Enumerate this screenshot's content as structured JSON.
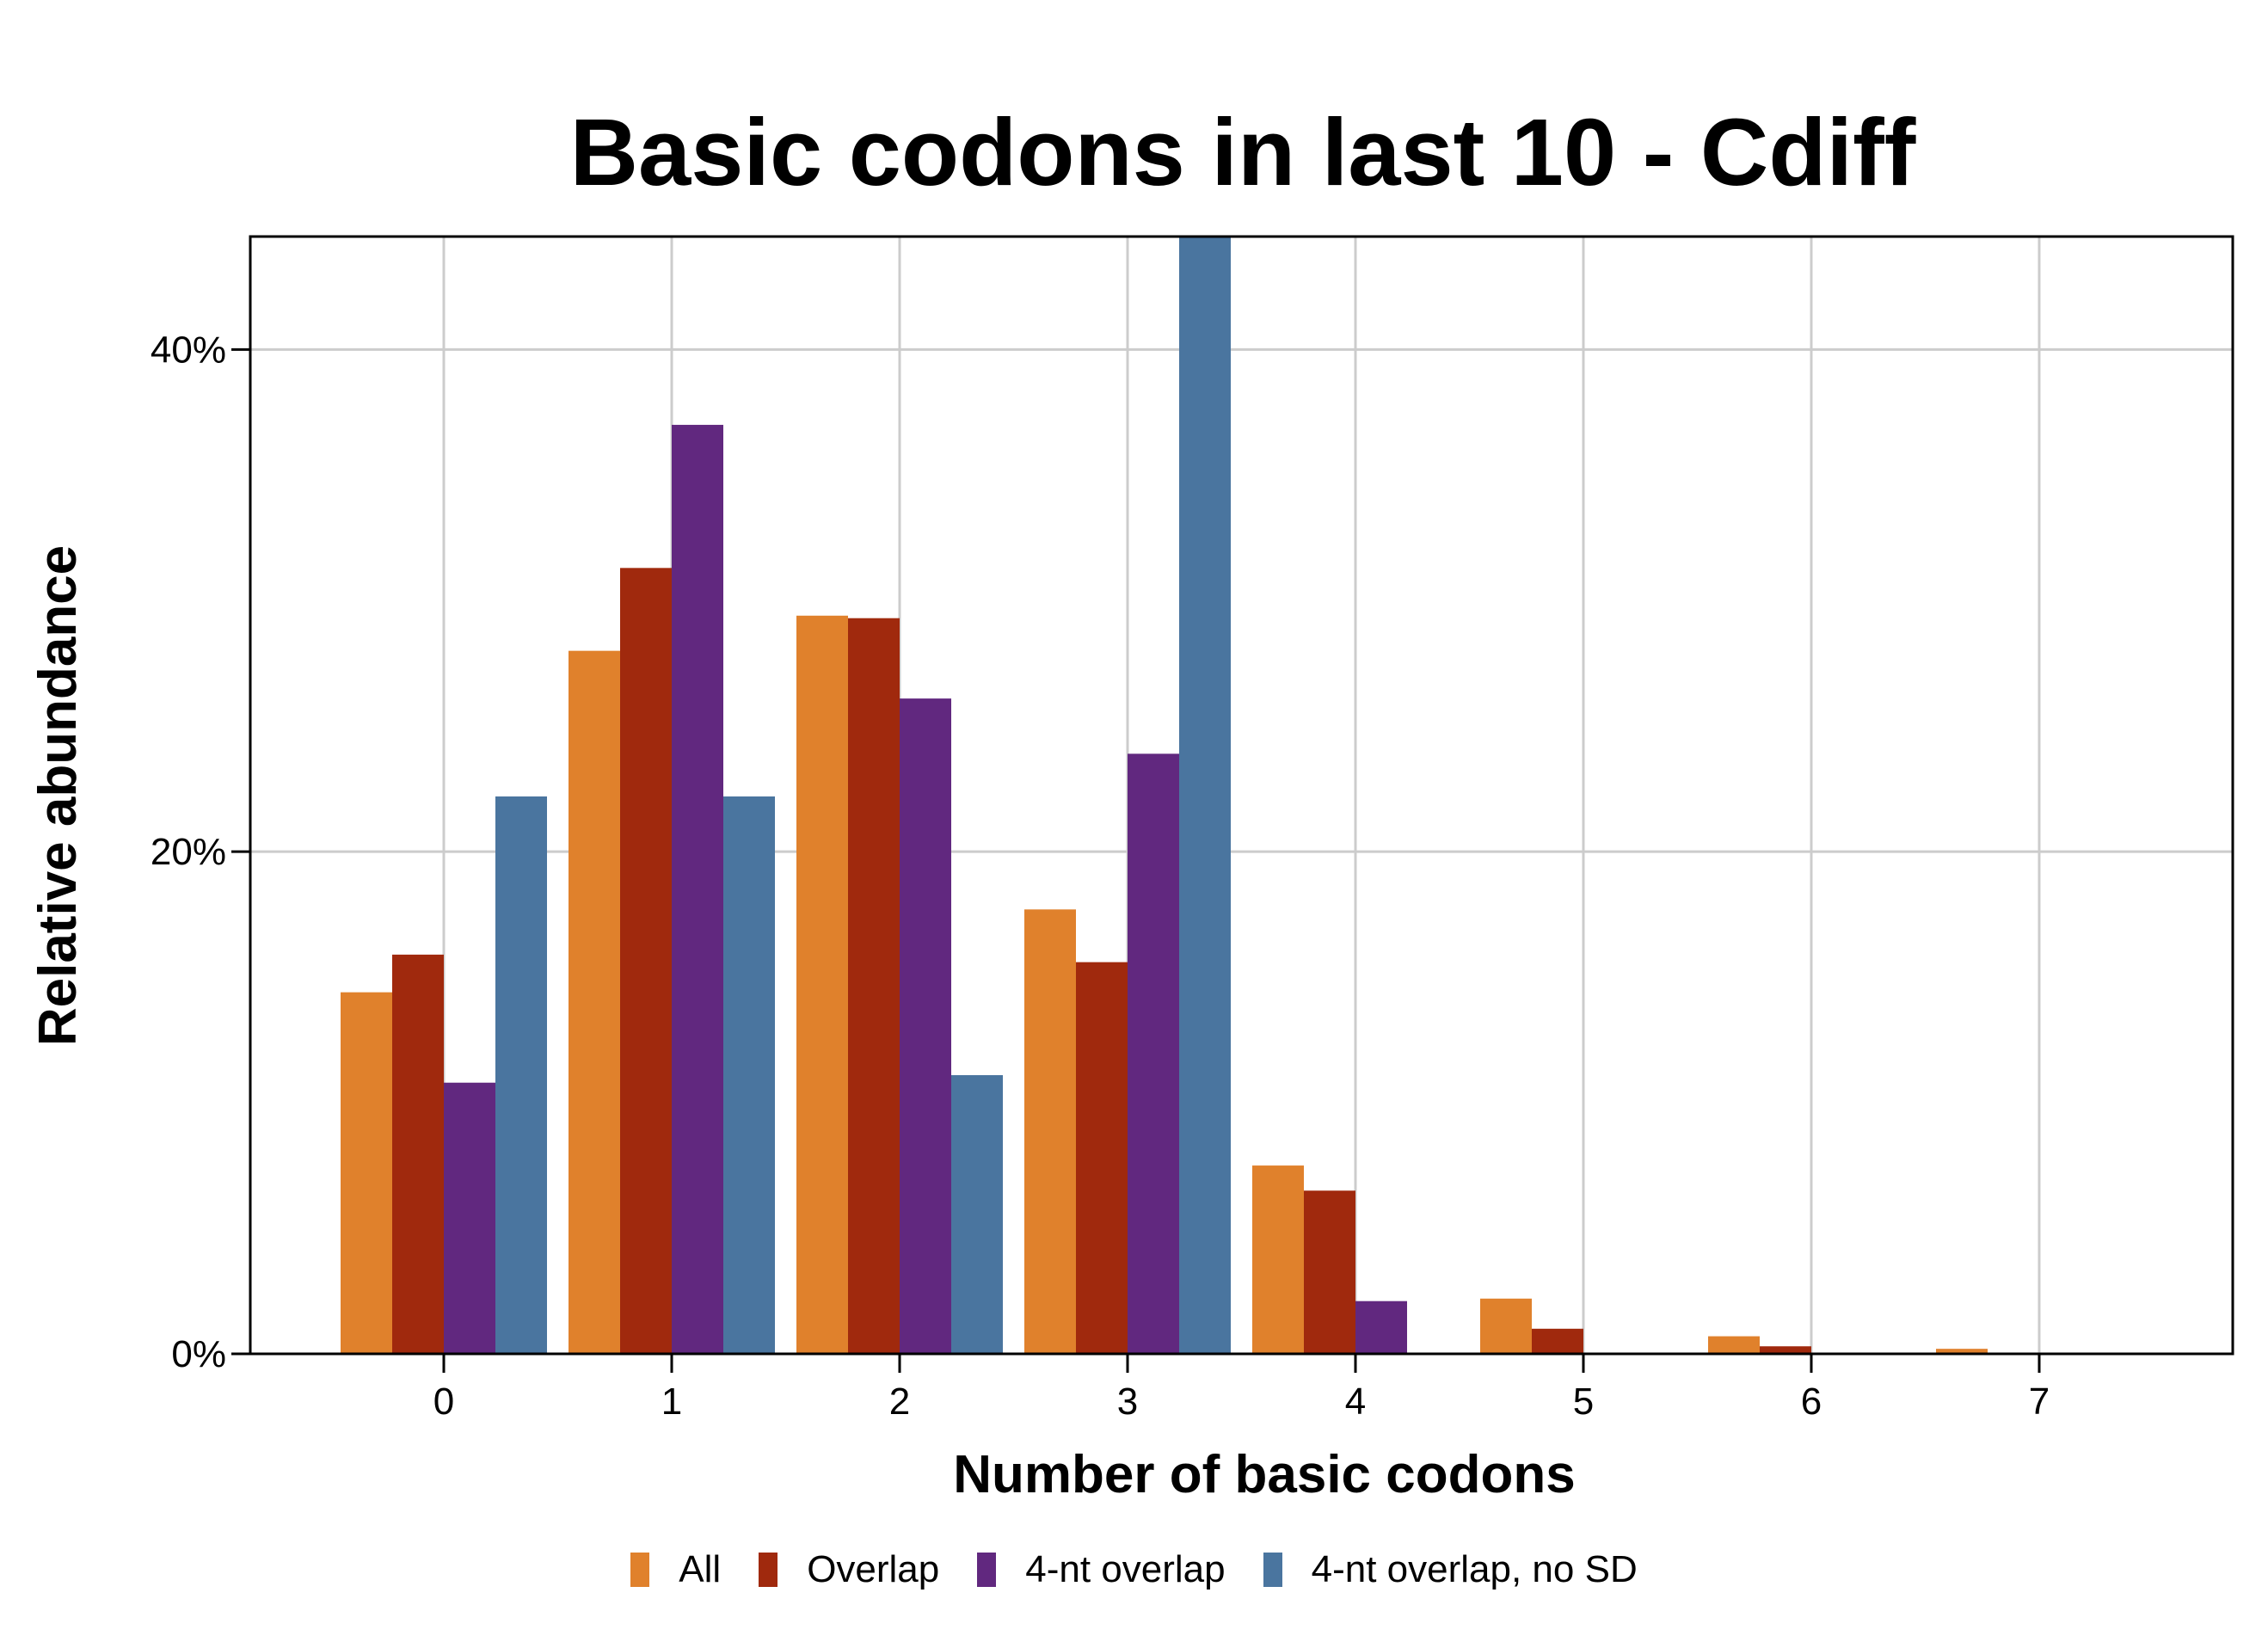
{
  "chart_data": {
    "type": "bar",
    "title": "Basic codons in last 10 - Cdiff",
    "xlabel": "Number of basic codons",
    "ylabel": "Relative abundance",
    "categories": [
      "0",
      "1",
      "2",
      "3",
      "4",
      "5",
      "6",
      "7"
    ],
    "ylim": [
      0,
      44.5
    ],
    "yticks": [
      0,
      20,
      40
    ],
    "ytick_labels": [
      "0%",
      "20%",
      "40%"
    ],
    "grid": true,
    "legend_position": "bottom",
    "series": [
      {
        "name": "All",
        "color": "#E0812C",
        "values": [
          14.4,
          28.0,
          29.4,
          17.7,
          7.5,
          2.2,
          0.7,
          0.2
        ]
      },
      {
        "name": "Overlap",
        "color": "#A0290D",
        "values": [
          15.9,
          31.3,
          29.3,
          15.6,
          6.5,
          1.0,
          0.3,
          0.0
        ]
      },
      {
        "name": "4-nt overlap",
        "color": "#61287F",
        "values": [
          10.8,
          37.0,
          26.1,
          23.9,
          2.1,
          0.0,
          0.0,
          0.0
        ]
      },
      {
        "name": "4-nt overlap, no SD",
        "color": "#4A759F",
        "values": [
          22.2,
          22.2,
          11.1,
          44.5,
          0.0,
          0.0,
          0.0,
          0.0
        ]
      }
    ]
  }
}
